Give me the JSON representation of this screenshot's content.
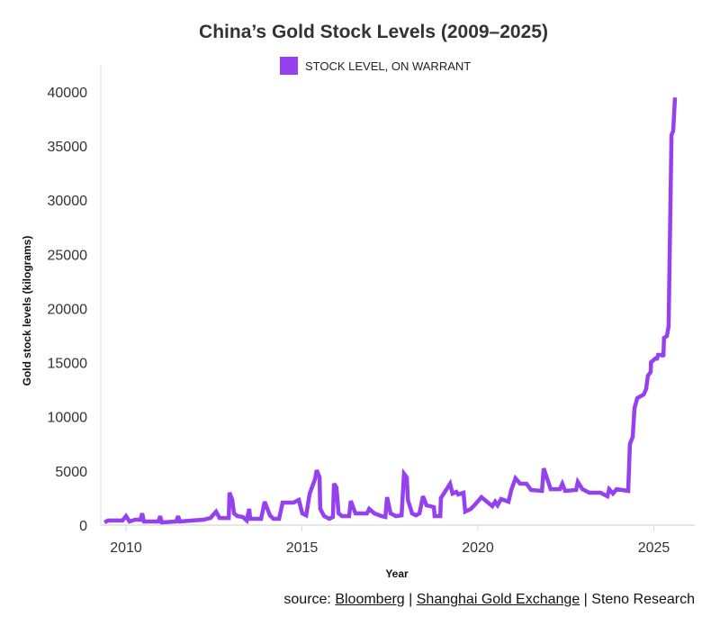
{
  "chart_data": {
    "type": "line",
    "title": "China’s Gold Stock Levels (2009–2025)",
    "xlabel": "Year",
    "ylabel": "Gold stock levels (kilograms)",
    "xlim": [
      2009.3,
      2026.2
    ],
    "ylim": [
      0,
      42000
    ],
    "x_ticks": [
      2010,
      2015,
      2020,
      2025
    ],
    "y_ticks": [
      0,
      5000,
      10000,
      15000,
      20000,
      25000,
      30000,
      35000,
      40000
    ],
    "grid": false,
    "legend_position": "top",
    "series": [
      {
        "name": "STOCK LEVEL, ON WARRANT",
        "color": "#9641f0",
        "x": [
          2009.39,
          2009.49,
          2009.9,
          2010.0,
          2010.1,
          2010.26,
          2010.41,
          2010.46,
          2010.51,
          2010.92,
          2010.97,
          2011.02,
          2011.43,
          2011.48,
          2011.53,
          2011.89,
          2012.2,
          2012.4,
          2012.56,
          2012.66,
          2012.92,
          2012.94,
          2013.02,
          2013.07,
          2013.17,
          2013.32,
          2013.43,
          2013.5,
          2013.53,
          2013.84,
          2013.94,
          2014.09,
          2014.19,
          2014.35,
          2014.45,
          2014.76,
          2014.91,
          2015.01,
          2015.12,
          2015.22,
          2015.37,
          2015.42,
          2015.5,
          2015.52,
          2015.63,
          2015.78,
          2015.88,
          2015.91,
          2015.98,
          2016.04,
          2016.14,
          2016.34,
          2016.39,
          2016.52,
          2016.85,
          2016.91,
          2017.06,
          2017.26,
          2017.37,
          2017.42,
          2017.52,
          2017.67,
          2017.83,
          2017.9,
          2017.98,
          2018.01,
          2018.13,
          2018.24,
          2018.34,
          2018.44,
          2018.54,
          2018.75,
          2018.77,
          2018.93,
          2018.95,
          2019.21,
          2019.28,
          2019.39,
          2019.44,
          2019.59,
          2019.64,
          2019.8,
          2019.9,
          2020.1,
          2020.41,
          2020.49,
          2020.56,
          2020.66,
          2020.87,
          2020.95,
          2021.07,
          2021.2,
          2021.38,
          2021.51,
          2021.82,
          2021.87,
          2022.07,
          2022.33,
          2022.4,
          2022.48,
          2022.79,
          2022.84,
          2022.97,
          2023.17,
          2023.48,
          2023.68,
          2023.73,
          2023.84,
          2023.94,
          2024.27,
          2024.32,
          2024.4,
          2024.45,
          2024.53,
          2024.71,
          2024.78,
          2024.83,
          2024.91,
          2024.92,
          2025.04,
          2025.09,
          2025.12,
          2025.24,
          2025.27,
          2025.29,
          2025.37,
          2025.42,
          2025.5,
          2025.55,
          2025.6
        ],
        "values": [
          250,
          420,
          420,
          830,
          330,
          500,
          500,
          1080,
          330,
          330,
          830,
          250,
          330,
          830,
          330,
          420,
          500,
          660,
          1250,
          660,
          660,
          3000,
          2330,
          1080,
          830,
          750,
          420,
          1500,
          580,
          580,
          2160,
          910,
          580,
          580,
          2080,
          2080,
          2330,
          1080,
          910,
          2910,
          4240,
          5070,
          4400,
          1500,
          830,
          580,
          750,
          3820,
          3490,
          1080,
          830,
          830,
          2240,
          1080,
          1080,
          1500,
          1080,
          830,
          750,
          2580,
          1080,
          830,
          910,
          4740,
          4400,
          2330,
          1080,
          910,
          1080,
          2660,
          1830,
          1660,
          830,
          830,
          2490,
          3820,
          2910,
          3070,
          2830,
          2990,
          1250,
          1500,
          1830,
          2580,
          1750,
          2160,
          1830,
          2410,
          2160,
          3240,
          4320,
          3820,
          3820,
          3240,
          3160,
          5240,
          3320,
          3320,
          3820,
          3160,
          3240,
          3990,
          3320,
          2990,
          2990,
          2660,
          3320,
          2910,
          3320,
          3160,
          7480,
          8140,
          10800,
          11720,
          12050,
          12550,
          13790,
          14130,
          15040,
          15370,
          15370,
          15710,
          15710,
          15540,
          17280,
          17450,
          18370,
          35980,
          36400,
          39470
        ]
      }
    ]
  },
  "source": {
    "prefix": "source: ",
    "bloomberg": "Bloomberg",
    "sep1": " | ",
    "sge": "Shanghai Gold Exchange",
    "sep2": " | Steno Research"
  }
}
